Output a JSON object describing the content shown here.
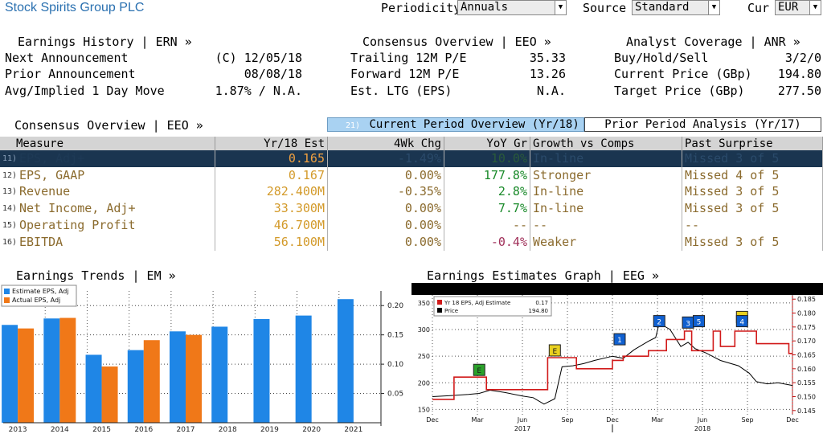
{
  "header": {
    "company": "Stock Spirits Group PLC",
    "periodicity_label": "Periodicity",
    "periodicity_value": "Annuals",
    "source_label": "Source",
    "source_value": "Standard",
    "cur_label": "Cur",
    "cur_value": "EUR"
  },
  "earnings_history": {
    "title": "Earnings History | ERN »",
    "rows": [
      {
        "label": "Next Announcement",
        "value": "(C)  12/05/18"
      },
      {
        "label": "Prior Announcement",
        "value": "08/08/18"
      },
      {
        "label": "Avg/Implied 1 Day Move",
        "value": "1.87% / N.A."
      }
    ]
  },
  "consensus_top": {
    "title": "Consensus Overview | EEO »",
    "rows": [
      {
        "label": "Trailing 12M P/E",
        "value": "35.33"
      },
      {
        "label": "Forward 12M P/E",
        "value": "13.26"
      },
      {
        "label": "Est. LTG (EPS)",
        "value": "N.A."
      }
    ]
  },
  "analyst_coverage": {
    "title": "Analyst Coverage | ANR »",
    "rows": [
      {
        "label": "Buy/Hold/Sell",
        "value": "3/2/0"
      },
      {
        "label": "Current Price (GBp)",
        "value": "194.80"
      },
      {
        "label": "Target Price (GBp)",
        "value": "277.50"
      }
    ]
  },
  "consensus_table": {
    "title": "Consensus Overview | EEO »",
    "tab_current_num": "21)",
    "tab_current": "Current Period Overview (Yr/18)",
    "tab_prior": "Prior Period Analysis (Yr/17)",
    "columns": [
      "Measure",
      "Yr/18 Est",
      "4Wk Chg",
      "YoY Gr",
      "Growth vs Comps",
      "Past Surprise"
    ],
    "rows": [
      {
        "num": "11)",
        "measure": "EPS, Adj+",
        "est": "0.165",
        "chg": "-1.49%",
        "yoy": "10.0%",
        "comps": "In-line",
        "surprise": "Missed 3 of 5",
        "yoy_color": "green"
      },
      {
        "num": "12)",
        "measure": "EPS, GAAP",
        "est": "0.167",
        "chg": "0.00%",
        "yoy": "177.8%",
        "comps": "Stronger",
        "surprise": "Missed 4 of 5",
        "yoy_color": "green"
      },
      {
        "num": "13)",
        "measure": "Revenue",
        "est": "282.400M",
        "chg": "-0.35%",
        "yoy": "2.8%",
        "comps": "In-line",
        "surprise": "Missed 3 of 5",
        "yoy_color": "green"
      },
      {
        "num": "14)",
        "measure": "Net Income, Adj+",
        "est": "33.300M",
        "chg": "0.00%",
        "yoy": "7.7%",
        "comps": "In-line",
        "surprise": "Missed 3 of 5",
        "yoy_color": "green"
      },
      {
        "num": "15)",
        "measure": "Operating Profit",
        "est": "46.700M",
        "chg": "0.00%",
        "yoy": "--",
        "comps": "--",
        "surprise": "--",
        "yoy_color": "brown"
      },
      {
        "num": "16)",
        "measure": "EBITDA",
        "est": "56.100M",
        "chg": "0.00%",
        "yoy": "-0.4%",
        "comps": "Weaker",
        "surprise": "Missed 3 of 5",
        "yoy_color": "pink"
      }
    ]
  },
  "earnings_trends": {
    "title": "Earnings Trends | EM »",
    "chart_data": {
      "type": "bar",
      "categories": [
        "2013",
        "2014",
        "2015",
        "2016",
        "2017",
        "2018",
        "2019",
        "2020",
        "2021"
      ],
      "series": [
        {
          "name": "Estimate EPS, Adj",
          "color": "#1f86e6",
          "values": [
            0.167,
            0.178,
            0.116,
            0.124,
            0.156,
            0.164,
            0.177,
            0.183,
            0.211
          ]
        },
        {
          "name": "Actual EPS, Adj",
          "color": "#f07818",
          "values": [
            0.161,
            0.179,
            0.096,
            0.141,
            0.15,
            null,
            null,
            null,
            null
          ]
        }
      ],
      "yticks": [
        "0.05",
        "0.10",
        "0.15",
        "0.20"
      ],
      "ylim": [
        0,
        0.225
      ],
      "grid": true,
      "legend": "top-left"
    }
  },
  "estimates_graph": {
    "title": "Earnings Estimates Graph | EEG »",
    "chart_data": {
      "type": "line",
      "legend": [
        {
          "name": "Yr 18 EPS, Adj Estimate",
          "value": "0.17",
          "color": "#d11a1a"
        },
        {
          "name": "Price",
          "value": "194.80",
          "color": "#000000"
        }
      ],
      "left_ticks": [
        "150",
        "200",
        "250",
        "300",
        "350"
      ],
      "right_ticks": [
        "0.145",
        "0.150",
        "0.155",
        "0.160",
        "0.165",
        "0.170",
        "0.175",
        "0.180",
        "0.185"
      ],
      "x_months": [
        "Dec",
        "Mar",
        "Jun",
        "Sep",
        "Dec",
        "Mar",
        "Jun",
        "Sep",
        "Dec"
      ],
      "x_years": [
        "2017",
        "2018"
      ],
      "estimate": [
        [
          0,
          0.149
        ],
        [
          0.06,
          0.149
        ],
        [
          0.06,
          0.157
        ],
        [
          0.15,
          0.157
        ],
        [
          0.15,
          0.1525
        ],
        [
          0.32,
          0.1525
        ],
        [
          0.32,
          0.164
        ],
        [
          0.4,
          0.164
        ],
        [
          0.4,
          0.16
        ],
        [
          0.5,
          0.16
        ],
        [
          0.5,
          0.163
        ],
        [
          0.53,
          0.163
        ],
        [
          0.53,
          0.1645
        ],
        [
          0.6,
          0.1645
        ],
        [
          0.6,
          0.1665
        ],
        [
          0.65,
          0.1665
        ],
        [
          0.65,
          0.1705
        ],
        [
          0.7,
          0.1705
        ],
        [
          0.7,
          0.1735
        ],
        [
          0.72,
          0.1735
        ],
        [
          0.72,
          0.1665
        ],
        [
          0.78,
          0.1665
        ],
        [
          0.78,
          0.1735
        ],
        [
          0.8,
          0.1735
        ],
        [
          0.8,
          0.168
        ],
        [
          0.84,
          0.168
        ],
        [
          0.84,
          0.1735
        ],
        [
          0.9,
          0.1735
        ],
        [
          0.9,
          0.169
        ],
        [
          0.99,
          0.169
        ],
        [
          0.99,
          0.1655
        ],
        [
          1,
          0.1655
        ]
      ],
      "price": [
        [
          0,
          174
        ],
        [
          0.05,
          176
        ],
        [
          0.1,
          178
        ],
        [
          0.13,
          180
        ],
        [
          0.16,
          186
        ],
        [
          0.2,
          182
        ],
        [
          0.25,
          175
        ],
        [
          0.28,
          172
        ],
        [
          0.31,
          160
        ],
        [
          0.34,
          170
        ],
        [
          0.36,
          230
        ],
        [
          0.39,
          232
        ],
        [
          0.42,
          236
        ],
        [
          0.45,
          242
        ],
        [
          0.5,
          250
        ],
        [
          0.53,
          246
        ],
        [
          0.56,
          262
        ],
        [
          0.6,
          278
        ],
        [
          0.62,
          285
        ],
        [
          0.63,
          312
        ],
        [
          0.66,
          300
        ],
        [
          0.69,
          268
        ],
        [
          0.71,
          276
        ],
        [
          0.73,
          264
        ],
        [
          0.76,
          256
        ],
        [
          0.8,
          242
        ],
        [
          0.85,
          232
        ],
        [
          0.88,
          218
        ],
        [
          0.9,
          202
        ],
        [
          0.93,
          198
        ],
        [
          0.96,
          200
        ],
        [
          1,
          195
        ]
      ],
      "markers": [
        {
          "label": "E",
          "x": 0.13,
          "y": 0.157,
          "bg": "#2aa12a",
          "fg": "#1a1a1a"
        },
        {
          "label": "E",
          "x": 0.34,
          "y": 0.164,
          "bg": "#e8d020",
          "fg": "#1a1a1a"
        },
        {
          "label": "1",
          "x": 0.52,
          "y": 0.168,
          "bg": "#1060d0",
          "fg": "#ffffff"
        },
        {
          "label": "2",
          "x": 0.63,
          "y": 0.1745,
          "bg": "#1060d0",
          "fg": "#ffffff"
        },
        {
          "label": "3",
          "x": 0.71,
          "y": 0.174,
          "bg": "#1060d0",
          "fg": "#ffffff"
        },
        {
          "label": "5",
          "x": 0.74,
          "y": 0.1745,
          "bg": "#1060d0",
          "fg": "#ffffff"
        },
        {
          "label": "E",
          "x": 0.86,
          "y": 0.176,
          "bg": "#e8d020",
          "fg": "#1a1a1a"
        },
        {
          "label": "4",
          "x": 0.86,
          "y": 0.1745,
          "bg": "#1060d0",
          "fg": "#ffffff"
        }
      ]
    }
  }
}
